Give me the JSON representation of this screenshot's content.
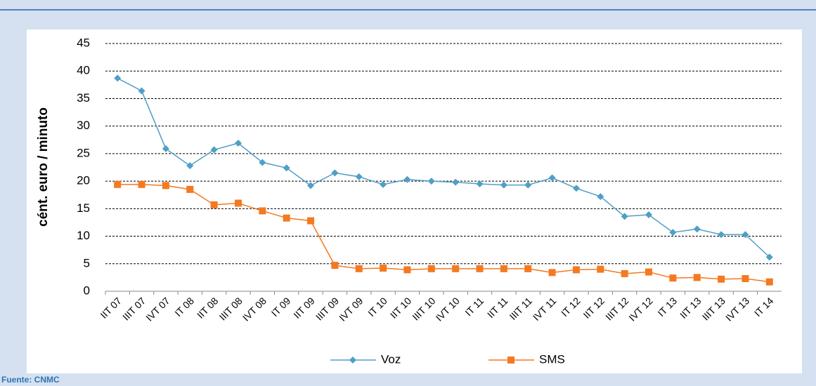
{
  "chart_data": {
    "type": "line",
    "ylabel": "cént. euro / minuto",
    "source": "Fuente: CNMC",
    "categories": [
      "IIT 07",
      "IIIT 07",
      "IVT 07",
      "IT 08",
      "IIT 08",
      "IIIT 08",
      "IVT 08",
      "IT 09",
      "IIT 09",
      "IIIT 09",
      "IVT 09",
      "IT 10",
      "IIT 10",
      "IIIT 10",
      "IVT 10",
      "IT 11",
      "IIT 11",
      "IIIT 11",
      "IVT 11",
      "IT 12",
      "IIT 12",
      "IIIT 12",
      "IVT 12",
      "IT 13",
      "IIT 13",
      "IIIT 13",
      "IVT 13",
      "IT 14"
    ],
    "series": [
      {
        "name": "Voz",
        "color": "#4f9fc6",
        "marker": "diamond",
        "values": [
          38.7,
          36.4,
          25.9,
          22.8,
          25.7,
          26.9,
          23.4,
          22.4,
          19.2,
          21.5,
          20.8,
          19.4,
          20.3,
          20.0,
          19.8,
          19.5,
          19.3,
          19.3,
          20.6,
          18.7,
          17.2,
          13.6,
          13.9,
          10.7,
          11.3,
          10.3,
          10.3,
          6.2
        ]
      },
      {
        "name": "SMS",
        "color": "#f47920",
        "marker": "square",
        "values": [
          19.4,
          19.4,
          19.2,
          18.5,
          15.7,
          16.0,
          14.6,
          13.3,
          12.8,
          4.7,
          4.1,
          4.2,
          3.9,
          4.1,
          4.1,
          4.1,
          4.1,
          4.1,
          3.4,
          3.9,
          4.0,
          3.2,
          3.5,
          2.4,
          2.5,
          2.2,
          2.3,
          1.7
        ]
      }
    ],
    "ylim": [
      0,
      45
    ],
    "yticks": [
      0,
      5,
      10,
      15,
      20,
      25,
      30,
      35,
      40,
      45
    ],
    "grid": true,
    "legend": "bottom"
  }
}
